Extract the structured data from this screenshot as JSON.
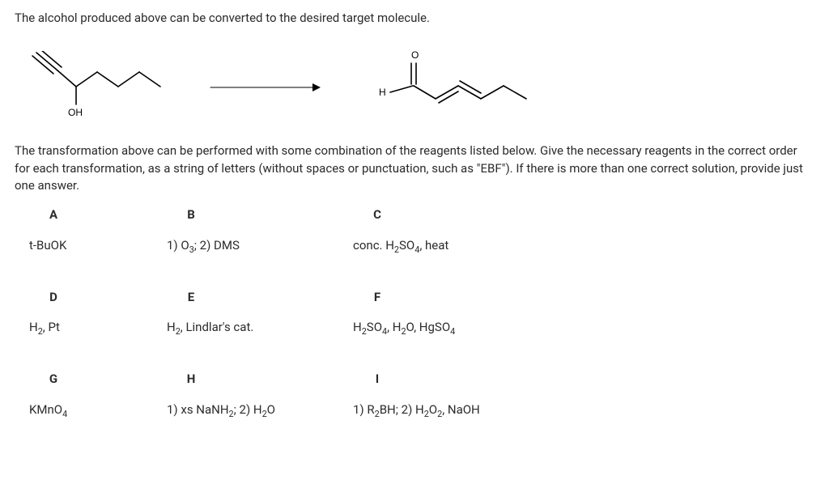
{
  "intro": "The alcohol produced above can be converted to the desired target molecule.",
  "prompt": "The transformation above can be performed with some combination of the reagents listed below. Give the necessary reagents in the correct order for each transformation, as a string of letters (without spaces or punctuation, such as \"EBF\"). If there is more than one correct solution, provide just one answer.",
  "reaction": {
    "start_label_OH": "OH",
    "product_H": "H",
    "product_O": "O"
  },
  "reagents": {
    "A": {
      "letter": "A",
      "html": "t-BuOK"
    },
    "B": {
      "letter": "B",
      "html": "1) O<sub>3</sub>; 2) DMS"
    },
    "C": {
      "letter": "C",
      "html": "conc. H<sub>2</sub>SO<sub>4</sub>, heat"
    },
    "D": {
      "letter": "D",
      "html": "H<sub>2</sub>, Pt"
    },
    "E": {
      "letter": "E",
      "html": "H<sub>2</sub>, Lindlar's cat."
    },
    "F": {
      "letter": "F",
      "html": "H<sub>2</sub>SO<sub>4</sub>, H<sub>2</sub>O, HgSO<sub>4</sub>"
    },
    "G": {
      "letter": "G",
      "html": "KMnO<sub>4</sub>"
    },
    "H": {
      "letter": "H",
      "html": "1) xs NaNH<sub>2</sub>; 2) H<sub>2</sub>O"
    },
    "I": {
      "letter": "I",
      "html": "1) R<sub>2</sub>BH; 2) H<sub>2</sub>O<sub>2</sub>, NaOH"
    }
  }
}
